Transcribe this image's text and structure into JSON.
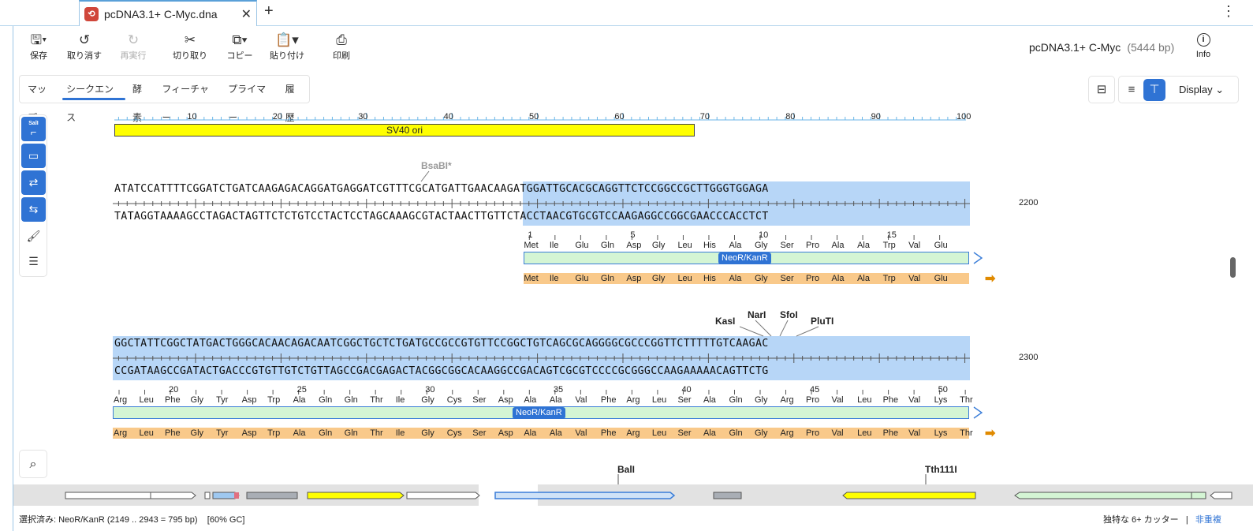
{
  "tab": {
    "title": "pcDNA3.1+ C-Myc.dna"
  },
  "toolbar": {
    "save": "保存",
    "undo": "取り消す",
    "redo": "再実行",
    "cut": "切り取り",
    "copy": "コピー",
    "paste": "貼り付け",
    "print": "印刷",
    "info": "Info"
  },
  "document": {
    "name": "pcDNA3.1+ C-Myc",
    "length": "(5444 bp)"
  },
  "view_tabs": [
    "マップ",
    "シークエンス",
    "酵素",
    "フィーチャー",
    "プライマー",
    "履歴"
  ],
  "active_view_tab": "シークエンス",
  "display_label": "Display",
  "sidebar": {
    "sall_label": "SalI"
  },
  "ruler": {
    "numbers": [
      "10",
      "20",
      "30",
      "40",
      "50",
      "60",
      "70",
      "80",
      "90",
      "100"
    ]
  },
  "top_feature": {
    "label": "SV40 ori",
    "color": "#ffff00"
  },
  "blocks": [
    {
      "top_seq": "ATATCCATTTTCGGATCTGATCAAGAGACAGGATGAGGATCGTTTCGCATGATTGAACAAGATGGATTGCACGCAGGTTCTCCGGCCGCTTGGGTGGAGA",
      "bottom_seq": "TATAGGTAAAAGCCTAGACTAGTTCTCTGTCCTACTCCTAGCAAAGCGTACTAACTTGTTCTACCTAACGTGCGTCCAAGAGGCCGGCGAACCCACCTCT",
      "position": "2200",
      "enzymes": [
        {
          "name": "BsaBI*",
          "gray": true
        }
      ],
      "aa_numbers": [
        "1",
        "5",
        "10",
        "15"
      ],
      "aa_top": [
        "Met",
        "Ile",
        "Glu",
        "Gln",
        "Asp",
        "Gly",
        "Leu",
        "His",
        "Ala",
        "Gly",
        "Ser",
        "Pro",
        "Ala",
        "Ala",
        "Trp",
        "Val",
        "Glu"
      ],
      "aa_orf": [
        "Met",
        "Ile",
        "Glu",
        "Gln",
        "Asp",
        "Gly",
        "Leu",
        "His",
        "Ala",
        "Gly",
        "Ser",
        "Pro",
        "Ala",
        "Ala",
        "Trp",
        "Val",
        "Glu"
      ],
      "feature_label": "NeoR/KanR"
    },
    {
      "top_seq": "GGCTATTCGGCTATGACTGGGCACAACAGACAATCGGCTGCTCTGATGCCGCCGTGTTCCGGCTGTCAGCGCAGGGGCGCCCGGTTCTTTTTGTCAAGAC",
      "bottom_seq": "CCGATAAGCCGATACTGACCCGTGTTGTCTGTTAGCCGACGAGACTACGGCGGCACAAGGCCGACAGTCGCGTCCCCGCGGGCCAAGAAAAACAGTTCTG",
      "position": "2300",
      "enzymes": [
        {
          "name": "KasI",
          "gray": false
        },
        {
          "name": "NarI",
          "gray": false
        },
        {
          "name": "SfoI",
          "gray": false
        },
        {
          "name": "PluTI",
          "gray": false
        }
      ],
      "aa_numbers": [
        "20",
        "25",
        "30",
        "35",
        "40",
        "45",
        "50"
      ],
      "aa_top": [
        "Arg",
        "Leu",
        "Phe",
        "Gly",
        "Tyr",
        "Asp",
        "Trp",
        "Ala",
        "Gln",
        "Gln",
        "Thr",
        "Ile",
        "Gly",
        "Cys",
        "Ser",
        "Asp",
        "Ala",
        "Ala",
        "Val",
        "Phe",
        "Arg",
        "Leu",
        "Ser",
        "Ala",
        "Gln",
        "Gly",
        "Arg",
        "Pro",
        "Val",
        "Leu",
        "Phe",
        "Val",
        "Lys",
        "Thr"
      ],
      "aa_orf": [
        "Arg",
        "Leu",
        "Phe",
        "Gly",
        "Tyr",
        "Asp",
        "Trp",
        "Ala",
        "Gln",
        "Gln",
        "Thr",
        "Ile",
        "Gly",
        "Cys",
        "Ser",
        "Asp",
        "Ala",
        "Ala",
        "Val",
        "Phe",
        "Arg",
        "Leu",
        "Ser",
        "Ala",
        "Gln",
        "Gly",
        "Arg",
        "Pro",
        "Val",
        "Leu",
        "Phe",
        "Val",
        "Lys",
        "Thr"
      ],
      "feature_label": "NeoR/KanR"
    }
  ],
  "partial_enzymes": [
    "BalI",
    "Tth111I"
  ],
  "status": {
    "selected": "選択済み:  NeoR/KanR  (2149 .. 2943  =  795 bp)",
    "gc": "[60% GC]",
    "cutters": "独特な 6+ カッター",
    "separator": "|",
    "overlap": "非重複"
  }
}
